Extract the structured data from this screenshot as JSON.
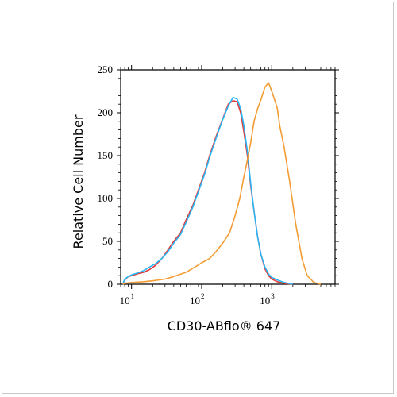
{
  "chart_data": {
    "type": "line",
    "title": "",
    "xlabel": "CD30-ABflo® 647",
    "ylabel": "Relative Cell Number",
    "xscale": "log",
    "xlim": [
      7,
      8000
    ],
    "ylim": [
      0,
      250
    ],
    "y_ticks": [
      "0",
      "50",
      "100",
      "150",
      "200",
      "250"
    ],
    "x_ticks": [
      {
        "base": "10",
        "exp": "1",
        "value": 10
      },
      {
        "base": "10",
        "exp": "2",
        "value": 100
      },
      {
        "base": "10",
        "exp": "3",
        "value": 1000
      }
    ],
    "grid": false,
    "legend": "none",
    "series": [
      {
        "color": "#e53935",
        "points": [
          [
            7.5,
            0
          ],
          [
            8,
            5
          ],
          [
            9,
            9
          ],
          [
            10,
            10
          ],
          [
            12,
            12
          ],
          [
            15,
            14
          ],
          [
            18,
            17
          ],
          [
            22,
            22
          ],
          [
            27,
            30
          ],
          [
            33,
            40
          ],
          [
            40,
            50
          ],
          [
            50,
            60
          ],
          [
            60,
            75
          ],
          [
            75,
            92
          ],
          [
            90,
            110
          ],
          [
            110,
            130
          ],
          [
            130,
            150
          ],
          [
            160,
            172
          ],
          [
            200,
            193
          ],
          [
            240,
            210
          ],
          [
            280,
            214
          ],
          [
            320,
            213
          ],
          [
            360,
            200
          ],
          [
            400,
            178
          ],
          [
            450,
            150
          ],
          [
            500,
            115
          ],
          [
            560,
            85
          ],
          [
            630,
            55
          ],
          [
            700,
            35
          ],
          [
            800,
            18
          ],
          [
            900,
            10
          ],
          [
            1000,
            6
          ],
          [
            1200,
            3
          ],
          [
            1500,
            1
          ],
          [
            2000,
            0
          ]
        ]
      },
      {
        "color": "#29b6f6",
        "points": [
          [
            7.5,
            0
          ],
          [
            8,
            6
          ],
          [
            9,
            9
          ],
          [
            10,
            11
          ],
          [
            12,
            13
          ],
          [
            15,
            16
          ],
          [
            18,
            20
          ],
          [
            22,
            24
          ],
          [
            27,
            30
          ],
          [
            33,
            38
          ],
          [
            40,
            48
          ],
          [
            50,
            58
          ],
          [
            60,
            72
          ],
          [
            75,
            90
          ],
          [
            90,
            108
          ],
          [
            110,
            128
          ],
          [
            130,
            148
          ],
          [
            160,
            170
          ],
          [
            200,
            192
          ],
          [
            240,
            208
          ],
          [
            280,
            218
          ],
          [
            320,
            216
          ],
          [
            360,
            205
          ],
          [
            400,
            185
          ],
          [
            450,
            155
          ],
          [
            500,
            118
          ],
          [
            560,
            85
          ],
          [
            630,
            55
          ],
          [
            700,
            35
          ],
          [
            800,
            20
          ],
          [
            900,
            12
          ],
          [
            1000,
            8
          ],
          [
            1200,
            5
          ],
          [
            1500,
            2
          ],
          [
            2000,
            0
          ]
        ]
      },
      {
        "color": "#f39c33",
        "points": [
          [
            7.5,
            0
          ],
          [
            8,
            1
          ],
          [
            10,
            2
          ],
          [
            15,
            3
          ],
          [
            20,
            4
          ],
          [
            30,
            6
          ],
          [
            40,
            9
          ],
          [
            60,
            14
          ],
          [
            80,
            20
          ],
          [
            100,
            25
          ],
          [
            130,
            30
          ],
          [
            160,
            38
          ],
          [
            200,
            48
          ],
          [
            250,
            60
          ],
          [
            300,
            80
          ],
          [
            350,
            100
          ],
          [
            400,
            125
          ],
          [
            450,
            145
          ],
          [
            500,
            165
          ],
          [
            560,
            190
          ],
          [
            630,
            205
          ],
          [
            700,
            215
          ],
          [
            800,
            230
          ],
          [
            900,
            235
          ],
          [
            1000,
            225
          ],
          [
            1100,
            215
          ],
          [
            1200,
            205
          ],
          [
            1300,
            185
          ],
          [
            1500,
            160
          ],
          [
            1800,
            120
          ],
          [
            2200,
            70
          ],
          [
            2700,
            30
          ],
          [
            3200,
            10
          ],
          [
            4000,
            2
          ],
          [
            5000,
            0
          ]
        ]
      }
    ]
  }
}
